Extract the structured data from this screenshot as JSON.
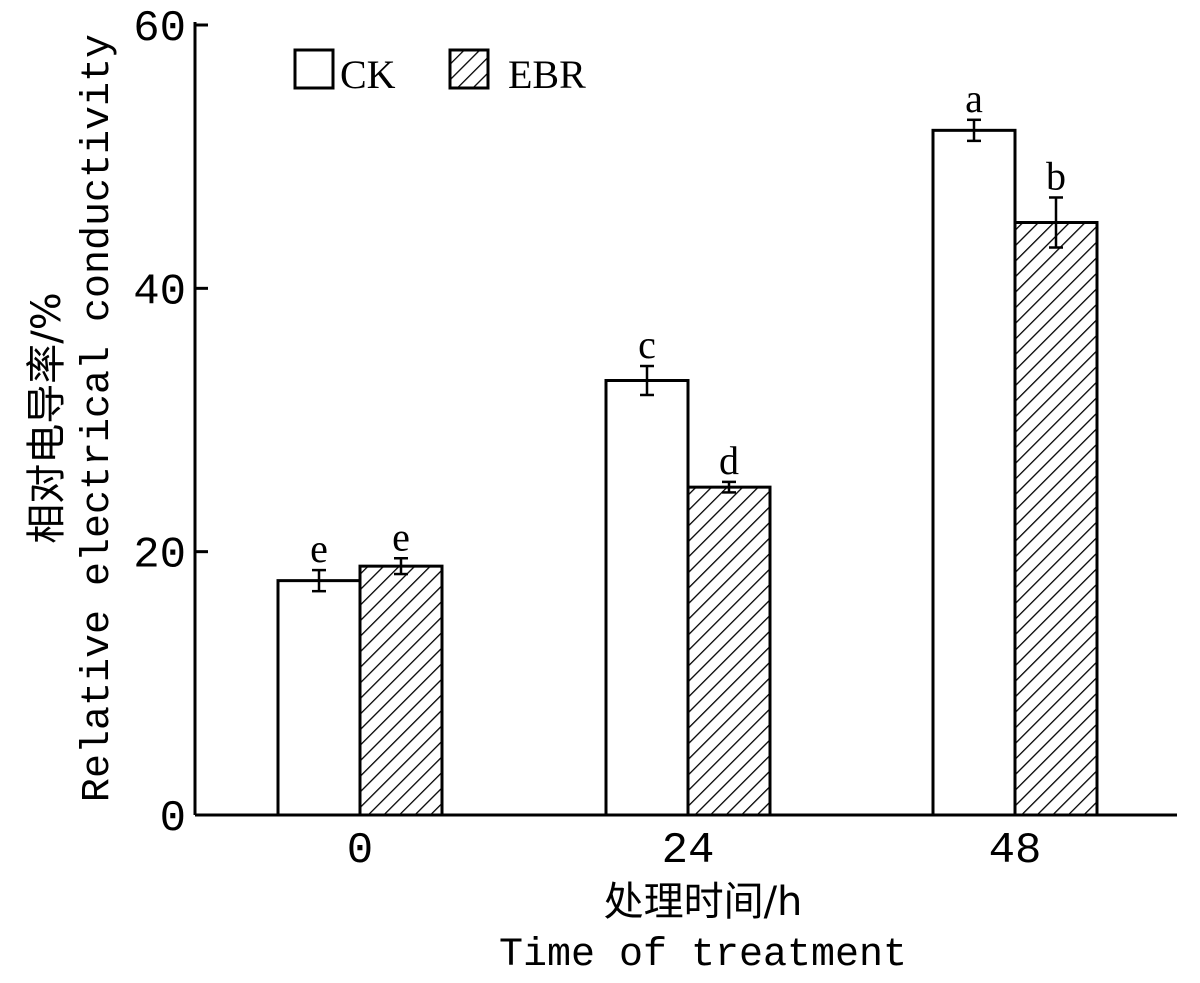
{
  "chart_data": {
    "type": "bar",
    "categories": [
      "0",
      "24",
      "48"
    ],
    "series": [
      {
        "name": "CK",
        "values": [
          17.8,
          33.0,
          52.0
        ],
        "errors": [
          0.8,
          1.1,
          0.8
        ],
        "labels": [
          "e",
          "c",
          "a"
        ],
        "pattern": "open"
      },
      {
        "name": "EBR",
        "values": [
          18.9,
          24.9,
          45.0
        ],
        "errors": [
          0.6,
          0.4,
          1.9
        ],
        "labels": [
          "e",
          "d",
          "b"
        ],
        "pattern": "hatched"
      }
    ],
    "xlabel_cn": "处理时间/h",
    "xlabel_en": "Time of treatment",
    "ylabel_cn": "相对电导率/%",
    "ylabel_en": "Relative electrical conductivity",
    "ylim": [
      0,
      60
    ],
    "yticks": [
      "0",
      "20",
      "40",
      "60"
    ],
    "legend_position": "top-left",
    "grid": false,
    "colors": {
      "bar_fill": "#ffffff",
      "stroke": "#000000",
      "hatch": "#000000"
    }
  }
}
